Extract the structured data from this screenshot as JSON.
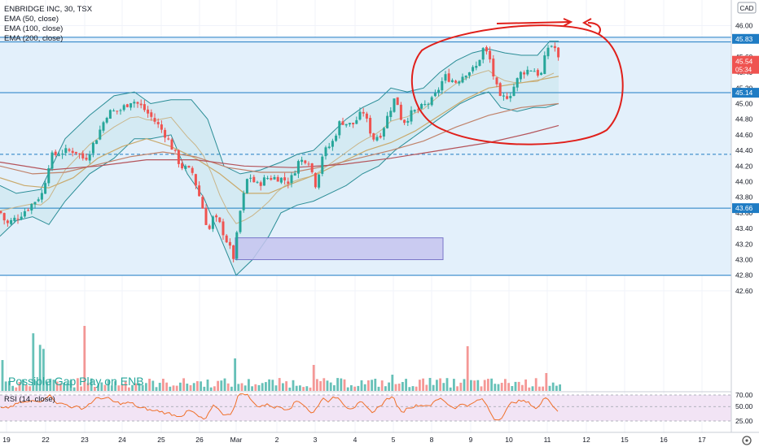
{
  "header": {
    "title": "ENBRIDGE INC, 30, TSX",
    "indicators": [
      "EMA (50, close)",
      "EMA (100, close)",
      "EMA (200, close)"
    ],
    "currency": "CAD"
  },
  "annotation_text": "Possible Gap Play on ENB",
  "rsi_label": "RSI (14, close)",
  "colors": {
    "up": "#26a69a",
    "down": "#ef5350",
    "zone": "#e3f0fb",
    "zone_line": "#1f7cc4",
    "gap_box": "#c6c4ee",
    "circle": "#e0201b",
    "rsi_band": "#f2e4f5",
    "rsi_line": "#f0702a"
  },
  "chart_data": {
    "type": "candlestick",
    "y_axis": {
      "ylim": [
        42.5,
        46.25
      ],
      "ticks": [
        "46.00",
        "45.80",
        "45.60",
        "45.40",
        "45.20",
        "45.00",
        "44.80",
        "44.60",
        "44.40",
        "44.20",
        "44.00",
        "43.80",
        "43.60",
        "43.40",
        "43.20",
        "43.00",
        "42.80",
        "42.60"
      ]
    },
    "x_axis": {
      "ticks": [
        "19",
        "22",
        "23",
        "24",
        "25",
        "26",
        "Mar",
        "2",
        "3",
        "4",
        "5",
        "8",
        "9",
        "10",
        "11",
        "12",
        "15",
        "16",
        "17"
      ]
    },
    "price_labels": [
      {
        "value": 45.83,
        "text": "45.83",
        "style": "blue"
      },
      {
        "value": 45.54,
        "text": "45.54",
        "extra": "05:34",
        "style": "red"
      },
      {
        "value": 45.14,
        "text": "45.14",
        "style": "blue"
      },
      {
        "value": 43.66,
        "text": "43.66",
        "style": "blue"
      }
    ],
    "horizontal_lines": [
      45.85,
      45.79,
      45.14,
      44.35,
      43.66,
      42.8
    ],
    "zone": [
      42.8,
      45.85
    ],
    "gap_box": {
      "price_high": 43.28,
      "price_low": 43.0
    },
    "rsi_levels": [
      "70.00",
      "50.00",
      "25.00"
    ],
    "anchors": [
      [
        0,
        43.62
      ],
      [
        8,
        43.45
      ],
      [
        22,
        43.55
      ],
      [
        38,
        43.7
      ],
      [
        52,
        43.85
      ],
      [
        62,
        44.32
      ],
      [
        76,
        44.38
      ],
      [
        92,
        44.4
      ],
      [
        104,
        44.28
      ],
      [
        118,
        44.55
      ],
      [
        132,
        44.88
      ],
      [
        148,
        44.92
      ],
      [
        162,
        45.05
      ],
      [
        175,
        44.95
      ],
      [
        188,
        44.8
      ],
      [
        202,
        44.62
      ],
      [
        212,
        44.42
      ],
      [
        222,
        44.2
      ],
      [
        236,
        44.12
      ],
      [
        248,
        43.7
      ],
      [
        256,
        43.35
      ],
      [
        262,
        43.55
      ],
      [
        270,
        43.45
      ],
      [
        280,
        43.2
      ],
      [
        287,
        43.02
      ],
      [
        295,
        43.62
      ],
      [
        305,
        44.1
      ],
      [
        315,
        43.95
      ],
      [
        328,
        44.05
      ],
      [
        342,
        44.05
      ],
      [
        356,
        44.0
      ],
      [
        366,
        44.25
      ],
      [
        378,
        44.3
      ],
      [
        388,
        43.95
      ],
      [
        396,
        44.35
      ],
      [
        408,
        44.5
      ],
      [
        418,
        44.78
      ],
      [
        432,
        44.72
      ],
      [
        446,
        44.9
      ],
      [
        458,
        44.55
      ],
      [
        468,
        44.62
      ],
      [
        480,
        44.95
      ],
      [
        486,
        45.1
      ],
      [
        494,
        44.75
      ],
      [
        506,
        44.88
      ],
      [
        518,
        44.95
      ],
      [
        532,
        45.05
      ],
      [
        546,
        45.35
      ],
      [
        560,
        45.28
      ],
      [
        572,
        45.4
      ],
      [
        584,
        45.45
      ],
      [
        594,
        45.72
      ],
      [
        602,
        45.55
      ],
      [
        606,
        45.35
      ],
      [
        614,
        45.05
      ],
      [
        626,
        45.12
      ],
      [
        640,
        45.4
      ],
      [
        654,
        45.45
      ],
      [
        664,
        45.35
      ],
      [
        672,
        45.72
      ],
      [
        680,
        45.76
      ],
      [
        686,
        45.55
      ]
    ],
    "bb_upper": [
      [
        0,
        43.95
      ],
      [
        20,
        43.85
      ],
      [
        50,
        43.9
      ],
      [
        80,
        44.55
      ],
      [
        110,
        44.85
      ],
      [
        140,
        45.1
      ],
      [
        165,
        45.15
      ],
      [
        185,
        45.0
      ],
      [
        210,
        45.05
      ],
      [
        235,
        45.05
      ],
      [
        255,
        44.8
      ],
      [
        275,
        44.2
      ],
      [
        295,
        44.1
      ],
      [
        320,
        44.15
      ],
      [
        345,
        44.25
      ],
      [
        365,
        44.35
      ],
      [
        385,
        44.4
      ],
      [
        405,
        44.6
      ],
      [
        425,
        44.8
      ],
      [
        445,
        44.95
      ],
      [
        465,
        45.05
      ],
      [
        480,
        45.2
      ],
      [
        500,
        45.15
      ],
      [
        520,
        45.2
      ],
      [
        540,
        45.4
      ],
      [
        560,
        45.55
      ],
      [
        580,
        45.65
      ],
      [
        600,
        45.7
      ],
      [
        620,
        45.65
      ],
      [
        640,
        45.62
      ],
      [
        660,
        45.62
      ],
      [
        675,
        45.8
      ],
      [
        686,
        45.8
      ]
    ],
    "bb_lower": [
      [
        0,
        43.3
      ],
      [
        20,
        43.5
      ],
      [
        40,
        43.55
      ],
      [
        60,
        43.45
      ],
      [
        80,
        43.75
      ],
      [
        110,
        44.1
      ],
      [
        140,
        44.3
      ],
      [
        165,
        44.55
      ],
      [
        185,
        44.55
      ],
      [
        210,
        44.6
      ],
      [
        230,
        44.1
      ],
      [
        250,
        43.8
      ],
      [
        270,
        43.3
      ],
      [
        290,
        42.8
      ],
      [
        310,
        43.0
      ],
      [
        330,
        43.3
      ],
      [
        345,
        43.6
      ],
      [
        365,
        43.7
      ],
      [
        385,
        43.75
      ],
      [
        405,
        43.85
      ],
      [
        425,
        43.95
      ],
      [
        445,
        44.1
      ],
      [
        465,
        44.2
      ],
      [
        485,
        44.4
      ],
      [
        505,
        44.55
      ],
      [
        525,
        44.7
      ],
      [
        545,
        44.85
      ],
      [
        565,
        45.0
      ],
      [
        585,
        45.1
      ],
      [
        600,
        45.15
      ],
      [
        615,
        44.95
      ],
      [
        635,
        44.9
      ],
      [
        655,
        44.95
      ],
      [
        670,
        44.95
      ],
      [
        686,
        45.0
      ]
    ],
    "ema50": [
      [
        0,
        44.05
      ],
      [
        30,
        43.95
      ],
      [
        60,
        43.92
      ],
      [
        90,
        44.05
      ],
      [
        120,
        44.3
      ],
      [
        150,
        44.45
      ],
      [
        180,
        44.55
      ],
      [
        210,
        44.45
      ],
      [
        240,
        44.3
      ],
      [
        270,
        44.1
      ],
      [
        300,
        43.85
      ],
      [
        330,
        43.85
      ],
      [
        360,
        43.98
      ],
      [
        390,
        44.1
      ],
      [
        420,
        44.25
      ],
      [
        450,
        44.4
      ],
      [
        480,
        44.5
      ],
      [
        510,
        44.65
      ],
      [
        540,
        44.85
      ],
      [
        570,
        45.05
      ],
      [
        600,
        45.2
      ],
      [
        630,
        45.25
      ],
      [
        660,
        45.3
      ],
      [
        686,
        45.35
      ]
    ],
    "ema100": [
      [
        0,
        44.2
      ],
      [
        40,
        44.1
      ],
      [
        80,
        44.12
      ],
      [
        120,
        44.22
      ],
      [
        160,
        44.32
      ],
      [
        200,
        44.38
      ],
      [
        240,
        44.32
      ],
      [
        280,
        44.18
      ],
      [
        320,
        44.12
      ],
      [
        360,
        44.12
      ],
      [
        400,
        44.2
      ],
      [
        440,
        44.3
      ],
      [
        480,
        44.4
      ],
      [
        520,
        44.52
      ],
      [
        560,
        44.7
      ],
      [
        600,
        44.85
      ],
      [
        640,
        44.95
      ],
      [
        686,
        45.0
      ]
    ],
    "ema200": [
      [
        0,
        44.25
      ],
      [
        60,
        44.15
      ],
      [
        120,
        44.2
      ],
      [
        180,
        44.28
      ],
      [
        240,
        44.28
      ],
      [
        300,
        44.2
      ],
      [
        360,
        44.18
      ],
      [
        420,
        44.22
      ],
      [
        480,
        44.3
      ],
      [
        540,
        44.4
      ],
      [
        600,
        44.5
      ],
      [
        650,
        44.62
      ],
      [
        686,
        44.72
      ]
    ]
  }
}
